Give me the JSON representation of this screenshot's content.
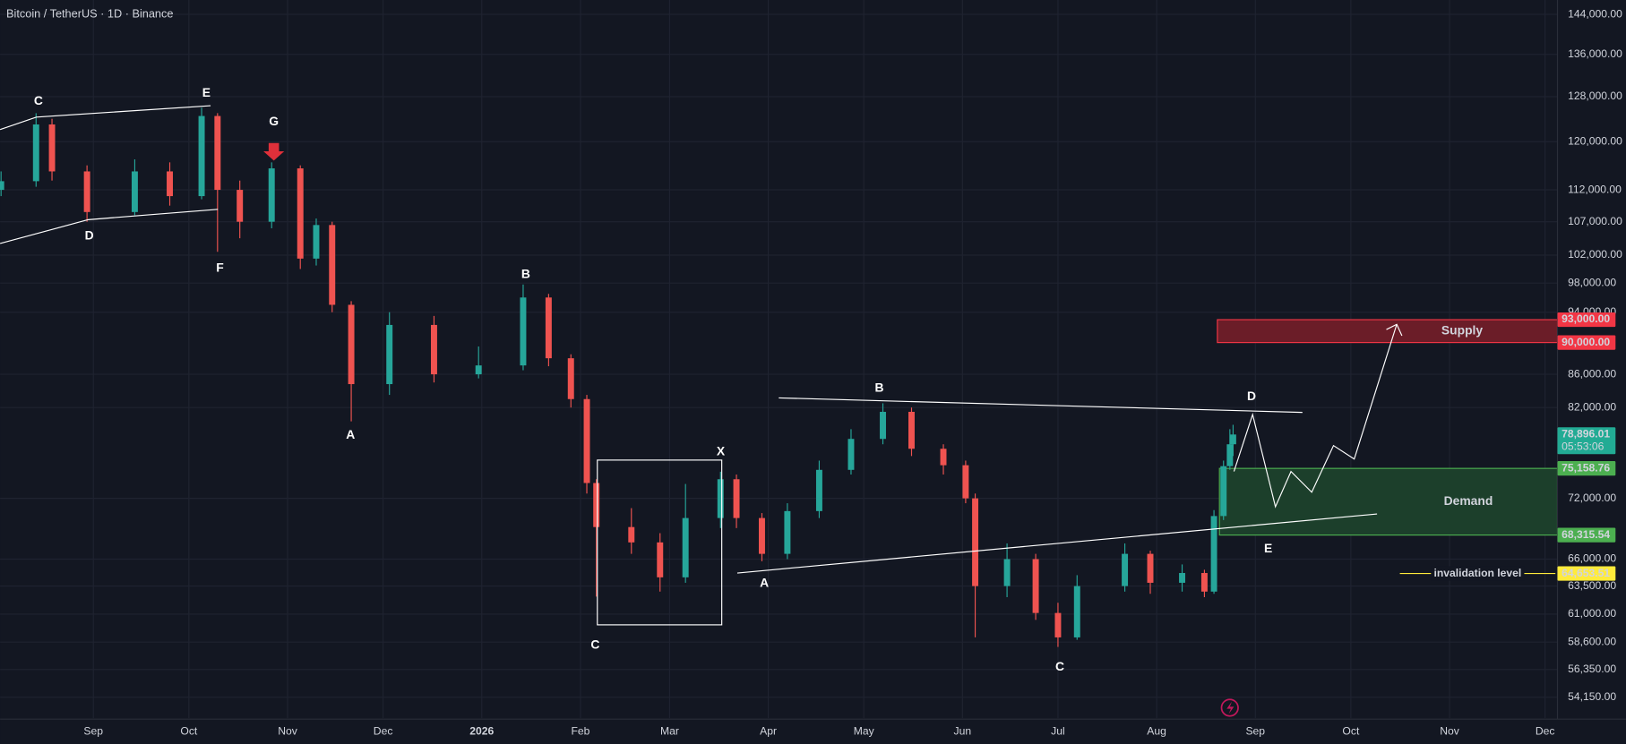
{
  "chart_data": {
    "type": "candlestick",
    "title": "Bitcoin / TetherUS · 1D · Binance",
    "log_scale": true,
    "grid": true,
    "up_color": "#26a69a",
    "down_color": "#ef5350",
    "xlim": [
      -29.3,
      459.9
    ],
    "ylim": [
      52560,
      147000
    ],
    "xticks": [
      {
        "value": 0,
        "label": "Sep"
      },
      {
        "value": 30,
        "label": "Oct"
      },
      {
        "value": 61,
        "label": "Nov"
      },
      {
        "value": 91,
        "label": "Dec"
      },
      {
        "value": 122,
        "label": "2026"
      },
      {
        "value": 153,
        "label": "Feb"
      },
      {
        "value": 181,
        "label": "Mar"
      },
      {
        "value": 212,
        "label": "Apr"
      },
      {
        "value": 242,
        "label": "May"
      },
      {
        "value": 273,
        "label": "Jun"
      },
      {
        "value": 303,
        "label": "Jul"
      },
      {
        "value": 334,
        "label": "Aug"
      },
      {
        "value": 365,
        "label": "Sep"
      },
      {
        "value": 395,
        "label": "Oct"
      },
      {
        "value": 426,
        "label": "Nov"
      },
      {
        "value": 456,
        "label": "Dec"
      }
    ],
    "yticks": [
      {
        "value": 144000,
        "label": "144,000.00"
      },
      {
        "value": 136000,
        "label": "136,000.00"
      },
      {
        "value": 128000,
        "label": "128,000.00"
      },
      {
        "value": 120000,
        "label": "120,000.00"
      },
      {
        "value": 112000,
        "label": "112,000.00"
      },
      {
        "value": 107000,
        "label": "107,000.00"
      },
      {
        "value": 102000,
        "label": "102,000.00"
      },
      {
        "value": 98000,
        "label": "98,000.00"
      },
      {
        "value": 94000,
        "label": "94,000.00"
      },
      {
        "value": 86000,
        "label": "86,000.00"
      },
      {
        "value": 82000,
        "label": "82,000.00"
      },
      {
        "value": 72000,
        "label": "72,000.00"
      },
      {
        "value": 66000,
        "label": "66,000.00"
      },
      {
        "value": 63500,
        "label": "63,500.00"
      },
      {
        "value": 61000,
        "label": "61,000.00"
      },
      {
        "value": 58600,
        "label": "58,600.00"
      },
      {
        "value": 56350,
        "label": "56,350.00"
      },
      {
        "value": 54150,
        "label": "54,150.00"
      }
    ],
    "x": [
      -29,
      -18,
      -13,
      -2,
      13,
      24,
      34,
      39,
      46,
      56,
      65,
      70,
      75,
      81,
      93,
      107,
      121,
      135,
      143,
      150,
      155,
      158,
      169,
      178,
      186,
      197,
      202,
      210,
      218,
      228,
      238,
      248,
      257,
      267,
      274,
      277,
      287,
      296,
      303,
      309,
      324,
      332,
      342,
      349,
      352,
      355,
      357,
      358
    ],
    "open": [
      112000,
      113400,
      123000,
      115000,
      108500,
      115000,
      111000,
      124500,
      112000,
      107000,
      115500,
      101500,
      106500,
      95000,
      84800,
      92300,
      86000,
      87100,
      96000,
      88000,
      83000,
      73600,
      69100,
      67600,
      64300,
      70000,
      74000,
      70000,
      66500,
      70700,
      75000,
      78400,
      81500,
      77300,
      75500,
      72000,
      63500,
      66000,
      61100,
      59000,
      63500,
      66500,
      63800,
      64700,
      63000,
      70200,
      75400,
      77800
    ],
    "high": [
      115000,
      125000,
      124000,
      116000,
      117000,
      116500,
      126000,
      125000,
      113500,
      116500,
      116000,
      107500,
      107000,
      95500,
      94000,
      93500,
      89500,
      97800,
      96500,
      88500,
      83500,
      74000,
      71000,
      68500,
      73500,
      74800,
      74500,
      70500,
      71500,
      76000,
      79500,
      82500,
      82000,
      77800,
      76000,
      72500,
      67500,
      66500,
      62000,
      64500,
      67500,
      66800,
      65500,
      65000,
      70800,
      76000,
      79500,
      80000
    ],
    "low": [
      111000,
      112500,
      113500,
      107000,
      108000,
      109500,
      110500,
      102500,
      104500,
      106000,
      100000,
      100500,
      94000,
      80400,
      83500,
      85000,
      85500,
      86500,
      87000,
      82000,
      72500,
      62550,
      66500,
      63000,
      63800,
      69000,
      69000,
      65800,
      66000,
      70000,
      74500,
      77800,
      76500,
      74500,
      71500,
      59000,
      62500,
      60500,
      58200,
      58800,
      63000,
      62800,
      63000,
      62500,
      62800,
      69800,
      75000,
      76500
    ],
    "close": [
      113400,
      123000,
      115000,
      108500,
      115000,
      111000,
      124500,
      112000,
      107000,
      115500,
      101500,
      106500,
      95000,
      84800,
      92300,
      86000,
      87100,
      96000,
      88000,
      83000,
      73600,
      69100,
      67600,
      64300,
      70000,
      74000,
      70000,
      66500,
      70700,
      75000,
      78400,
      81500,
      77300,
      75500,
      72000,
      63500,
      66000,
      61100,
      59000,
      63500,
      66500,
      63800,
      64700,
      63000,
      70200,
      75400,
      77800,
      78896
    ],
    "price_labels": [
      {
        "value": 93000,
        "label": "93,000.00",
        "color": "#f23645"
      },
      {
        "value": 90000,
        "label": "90,000.00",
        "color": "#f23645"
      },
      {
        "value": 78896.01,
        "label": "78,896.01",
        "color": "#22ab94"
      },
      {
        "value": 75158.76,
        "label": "75,158.76",
        "color": "#4caf50"
      },
      {
        "value": 68315.54,
        "label": "68,315.54",
        "color": "#4caf50"
      },
      {
        "value": 64653.51,
        "label": "64,653.51",
        "color": "#ffeb3b"
      }
    ],
    "countdown": "05:53:06",
    "supply": {
      "label": "Supply",
      "low": 90000,
      "high": 93000
    },
    "demand": {
      "label": "Demand",
      "low": 68315.54,
      "high": 75158.76
    },
    "invalidation": {
      "label": "invalidation level",
      "value": 64653.51
    },
    "wave_labels": [
      "C",
      "E",
      "G",
      "D",
      "F",
      "B",
      "A",
      "C",
      "X",
      "A",
      "B",
      "D",
      "E",
      "C"
    ]
  }
}
